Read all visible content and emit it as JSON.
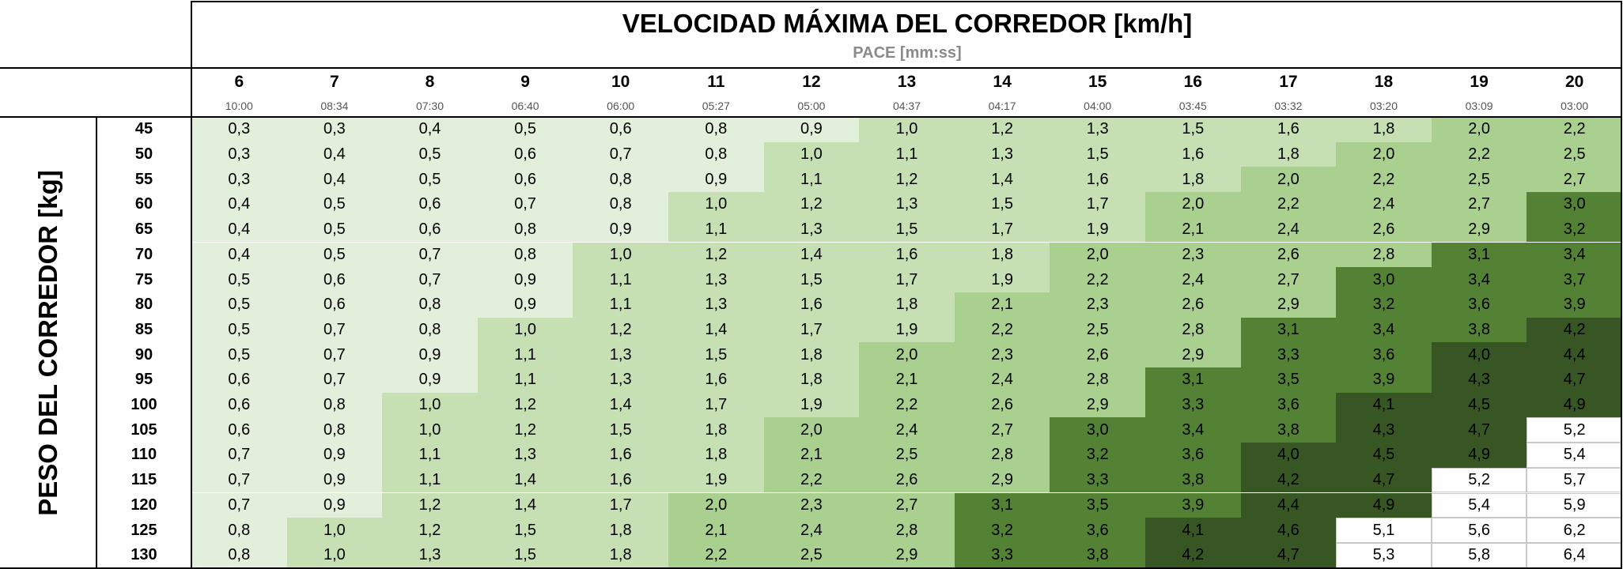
{
  "title": "VELOCIDAD MÁXIMA DEL CORREDOR [km/h]",
  "subtitle": "PACE [mm:ss]",
  "y_axis_label": "PESO DEL CORREDOR [kg]",
  "speeds": [
    "6",
    "7",
    "8",
    "9",
    "10",
    "11",
    "12",
    "13",
    "14",
    "15",
    "16",
    "17",
    "18",
    "19",
    "20"
  ],
  "paces": [
    "10:00",
    "08:34",
    "07:30",
    "06:40",
    "06:00",
    "05:27",
    "05:00",
    "04:37",
    "04:17",
    "04:00",
    "03:45",
    "03:32",
    "03:20",
    "03:09",
    "03:00"
  ],
  "weights": [
    "45",
    "50",
    "55",
    "60",
    "65",
    "70",
    "75",
    "80",
    "85",
    "90",
    "95",
    "100",
    "105",
    "110",
    "115",
    "120",
    "125",
    "130"
  ],
  "colors": {
    "level_0": "#e2efda",
    "level_1": "#c6e0b4",
    "level_2": "#a9d08e",
    "level_3": "#548235",
    "level_4": "#375623",
    "level_5": "#ffffff",
    "border": "#000000"
  },
  "table_values": [
    [
      "0,3",
      "0,3",
      "0,4",
      "0,5",
      "0,6",
      "0,8",
      "0,9",
      "1,0",
      "1,2",
      "1,3",
      "1,5",
      "1,6",
      "1,8",
      "2,0",
      "2,2"
    ],
    [
      "0,3",
      "0,4",
      "0,5",
      "0,6",
      "0,7",
      "0,8",
      "1,0",
      "1,1",
      "1,3",
      "1,5",
      "1,6",
      "1,8",
      "2,0",
      "2,2",
      "2,5"
    ],
    [
      "0,3",
      "0,4",
      "0,5",
      "0,6",
      "0,8",
      "0,9",
      "1,1",
      "1,2",
      "1,4",
      "1,6",
      "1,8",
      "2,0",
      "2,2",
      "2,5",
      "2,7"
    ],
    [
      "0,4",
      "0,5",
      "0,6",
      "0,7",
      "0,8",
      "1,0",
      "1,2",
      "1,3",
      "1,5",
      "1,7",
      "2,0",
      "2,2",
      "2,4",
      "2,7",
      "3,0"
    ],
    [
      "0,4",
      "0,5",
      "0,6",
      "0,8",
      "0,9",
      "1,1",
      "1,3",
      "1,5",
      "1,7",
      "1,9",
      "2,1",
      "2,4",
      "2,6",
      "2,9",
      "3,2"
    ],
    [
      "0,4",
      "0,5",
      "0,7",
      "0,8",
      "1,0",
      "1,2",
      "1,4",
      "1,6",
      "1,8",
      "2,0",
      "2,3",
      "2,6",
      "2,8",
      "3,1",
      "3,4"
    ],
    [
      "0,5",
      "0,6",
      "0,7",
      "0,9",
      "1,1",
      "1,3",
      "1,5",
      "1,7",
      "1,9",
      "2,2",
      "2,4",
      "2,7",
      "3,0",
      "3,4",
      "3,7"
    ],
    [
      "0,5",
      "0,6",
      "0,8",
      "0,9",
      "1,1",
      "1,3",
      "1,6",
      "1,8",
      "2,1",
      "2,3",
      "2,6",
      "2,9",
      "3,2",
      "3,6",
      "3,9"
    ],
    [
      "0,5",
      "0,7",
      "0,8",
      "1,0",
      "1,2",
      "1,4",
      "1,7",
      "1,9",
      "2,2",
      "2,5",
      "2,8",
      "3,1",
      "3,4",
      "3,8",
      "4,2"
    ],
    [
      "0,5",
      "0,7",
      "0,9",
      "1,1",
      "1,3",
      "1,5",
      "1,8",
      "2,0",
      "2,3",
      "2,6",
      "2,9",
      "3,3",
      "3,6",
      "4,0",
      "4,4"
    ],
    [
      "0,6",
      "0,7",
      "0,9",
      "1,1",
      "1,3",
      "1,6",
      "1,8",
      "2,1",
      "2,4",
      "2,8",
      "3,1",
      "3,5",
      "3,9",
      "4,3",
      "4,7"
    ],
    [
      "0,6",
      "0,8",
      "1,0",
      "1,2",
      "1,4",
      "1,7",
      "1,9",
      "2,2",
      "2,6",
      "2,9",
      "3,3",
      "3,6",
      "4,1",
      "4,5",
      "4,9"
    ],
    [
      "0,6",
      "0,8",
      "1,0",
      "1,2",
      "1,5",
      "1,8",
      "2,0",
      "2,4",
      "2,7",
      "3,0",
      "3,4",
      "3,8",
      "4,3",
      "4,7",
      "5,2"
    ],
    [
      "0,7",
      "0,9",
      "1,1",
      "1,3",
      "1,6",
      "1,8",
      "2,1",
      "2,5",
      "2,8",
      "3,2",
      "3,6",
      "4,0",
      "4,5",
      "4,9",
      "5,4"
    ],
    [
      "0,7",
      "0,9",
      "1,1",
      "1,4",
      "1,6",
      "1,9",
      "2,2",
      "2,6",
      "2,9",
      "3,3",
      "3,8",
      "4,2",
      "4,7",
      "5,2",
      "5,7"
    ],
    [
      "0,7",
      "0,9",
      "1,2",
      "1,4",
      "1,7",
      "2,0",
      "2,3",
      "2,7",
      "3,1",
      "3,5",
      "3,9",
      "4,4",
      "4,9",
      "5,4",
      "5,9"
    ],
    [
      "0,8",
      "1,0",
      "1,2",
      "1,5",
      "1,8",
      "2,1",
      "2,4",
      "2,8",
      "3,2",
      "3,6",
      "4,1",
      "4,6",
      "5,1",
      "5,6",
      "6,2"
    ],
    [
      "0,8",
      "1,0",
      "1,3",
      "1,5",
      "1,8",
      "2,2",
      "2,5",
      "2,9",
      "3,3",
      "3,8",
      "4,2",
      "4,7",
      "5,3",
      "5,8",
      "6,4"
    ]
  ],
  "color_levels": [
    [
      0,
      0,
      0,
      0,
      0,
      0,
      0,
      1,
      1,
      1,
      1,
      1,
      1,
      2,
      2
    ],
    [
      0,
      0,
      0,
      0,
      0,
      0,
      1,
      1,
      1,
      1,
      1,
      1,
      2,
      2,
      2
    ],
    [
      0,
      0,
      0,
      0,
      0,
      0,
      1,
      1,
      1,
      1,
      1,
      2,
      2,
      2,
      2
    ],
    [
      0,
      0,
      0,
      0,
      0,
      1,
      1,
      1,
      1,
      1,
      2,
      2,
      2,
      2,
      3
    ],
    [
      0,
      0,
      0,
      0,
      0,
      1,
      1,
      1,
      1,
      1,
      2,
      2,
      2,
      2,
      3
    ],
    [
      0,
      0,
      0,
      0,
      1,
      1,
      1,
      1,
      1,
      2,
      2,
      2,
      2,
      3,
      3
    ],
    [
      0,
      0,
      0,
      0,
      1,
      1,
      1,
      1,
      1,
      2,
      2,
      2,
      3,
      3,
      3
    ],
    [
      0,
      0,
      0,
      0,
      1,
      1,
      1,
      1,
      2,
      2,
      2,
      2,
      3,
      3,
      3
    ],
    [
      0,
      0,
      0,
      1,
      1,
      1,
      1,
      1,
      2,
      2,
      2,
      3,
      3,
      3,
      4
    ],
    [
      0,
      0,
      0,
      1,
      1,
      1,
      1,
      2,
      2,
      2,
      2,
      3,
      3,
      4,
      4
    ],
    [
      0,
      0,
      0,
      1,
      1,
      1,
      1,
      2,
      2,
      2,
      3,
      3,
      3,
      4,
      4
    ],
    [
      0,
      0,
      1,
      1,
      1,
      1,
      1,
      2,
      2,
      2,
      3,
      3,
      4,
      4,
      4
    ],
    [
      0,
      0,
      1,
      1,
      1,
      1,
      2,
      2,
      2,
      3,
      3,
      3,
      4,
      4,
      5
    ],
    [
      0,
      0,
      1,
      1,
      1,
      1,
      2,
      2,
      2,
      3,
      3,
      4,
      4,
      4,
      5
    ],
    [
      0,
      0,
      1,
      1,
      1,
      1,
      2,
      2,
      2,
      3,
      3,
      4,
      4,
      5,
      5
    ],
    [
      0,
      0,
      1,
      1,
      1,
      2,
      2,
      2,
      3,
      3,
      3,
      4,
      4,
      5,
      5
    ],
    [
      0,
      1,
      1,
      1,
      1,
      2,
      2,
      2,
      3,
      3,
      4,
      4,
      5,
      5,
      5
    ],
    [
      0,
      1,
      1,
      1,
      1,
      2,
      2,
      2,
      3,
      3,
      4,
      4,
      5,
      5,
      5
    ]
  ]
}
